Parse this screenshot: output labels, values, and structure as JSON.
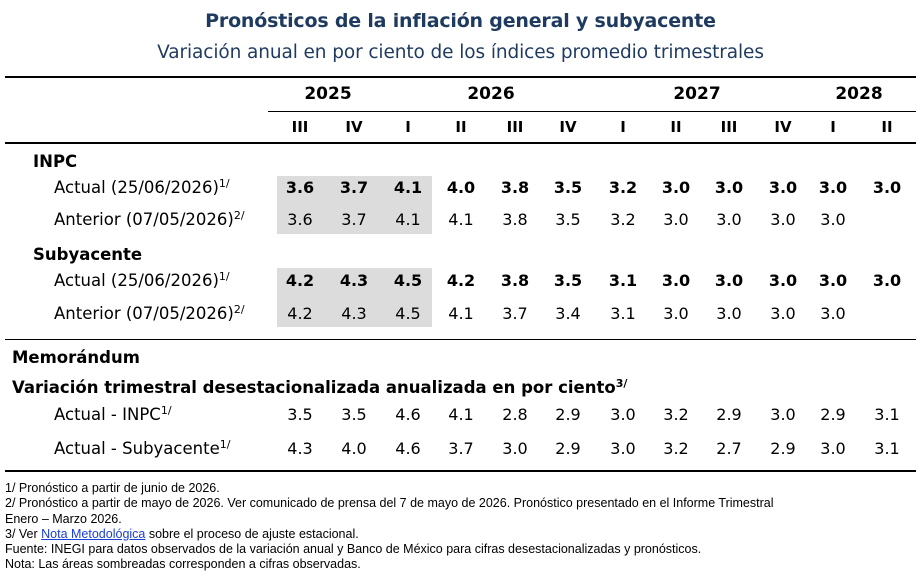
{
  "title": "Pronósticos de la inflación general y subyacente",
  "subtitle": "Variación anual en por ciento de los índices promedio trimestrales",
  "years": [
    "2025",
    "2026",
    "2027",
    "2028"
  ],
  "quarters": [
    "III",
    "IV",
    "I",
    "II",
    "III",
    "IV",
    "I",
    "II",
    "III",
    "IV",
    "I",
    "II"
  ],
  "sections": {
    "inpc": "INPC",
    "subyacente": "Subyacente",
    "memorandum": "Memorándum",
    "memo_sub": "Variación trimestral desestacionalizada anualizada en por ciento",
    "memo_sub_note": "3/"
  },
  "rows": [
    {
      "label": "Actual (25/06/2026)",
      "note": "1/",
      "bold": true,
      "values": [
        "3.6",
        "3.7",
        "4.1",
        "4.0",
        "3.8",
        "3.5",
        "3.2",
        "3.0",
        "3.0",
        "3.0",
        "3.0",
        "3.0"
      ]
    },
    {
      "label": "Anterior (07/05/2026)",
      "note": "2/",
      "bold": false,
      "values": [
        "3.6",
        "3.7",
        "4.1",
        "4.1",
        "3.8",
        "3.5",
        "3.2",
        "3.0",
        "3.0",
        "3.0",
        "3.0",
        ""
      ]
    },
    {
      "label": "Actual (25/06/2026)",
      "note": "1/",
      "bold": true,
      "values": [
        "4.2",
        "4.3",
        "4.5",
        "4.2",
        "3.8",
        "3.5",
        "3.1",
        "3.0",
        "3.0",
        "3.0",
        "3.0",
        "3.0"
      ]
    },
    {
      "label": "Anterior (07/05/2026)",
      "note": "2/",
      "bold": false,
      "values": [
        "4.2",
        "4.3",
        "4.5",
        "4.1",
        "3.7",
        "3.4",
        "3.1",
        "3.0",
        "3.0",
        "3.0",
        "3.0",
        ""
      ]
    },
    {
      "label": "Actual - INPC",
      "note": "1/",
      "bold": false,
      "values": [
        "3.5",
        "3.5",
        "4.6",
        "4.1",
        "2.8",
        "2.9",
        "3.0",
        "3.2",
        "2.9",
        "3.0",
        "2.9",
        "3.1"
      ]
    },
    {
      "label": "Actual - Subyacente",
      "note": "1/",
      "bold": false,
      "values": [
        "4.3",
        "4.0",
        "4.6",
        "3.7",
        "3.0",
        "2.9",
        "3.0",
        "3.2",
        "2.7",
        "2.9",
        "3.0",
        "3.1"
      ]
    }
  ],
  "footnotes": {
    "n1": "1/ Pronóstico a partir de junio de 2026.",
    "n2a": "2/ Pronóstico a partir de mayo de 2026. Ver comunicado de prensa del 7 de mayo de 2026. Pronóstico presentado en el Informe Trimestral",
    "n2b": "Enero – Marzo 2026.",
    "n3_pre": "3/ Ver ",
    "n3_link": "Nota Metodológica",
    "n3_post": " sobre el proceso de ajuste estacional.",
    "fuente": "Fuente: INEGI para datos observados de la variación anual y Banco de México para cifras desestacionalizadas y pronósticos.",
    "nota": "Nota: Las áreas sombreadas corresponden a cifras observadas."
  }
}
